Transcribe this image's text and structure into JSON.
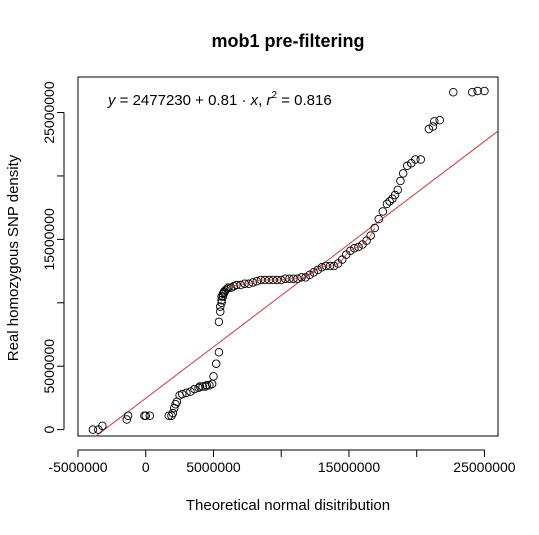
{
  "chart_data": {
    "type": "scatter",
    "title": "mob1 pre-filtering",
    "xlabel": "Theoretical normal disitribution",
    "ylabel": "Real homozygous SNP density",
    "xlim": [
      -5000000,
      26000000
    ],
    "ylim": [
      -500000,
      27800000
    ],
    "xticks": [
      -5000000,
      0,
      5000000,
      15000000,
      25000000
    ],
    "xtick_labels": [
      "-5000000",
      "0",
      "5000000",
      "15000000",
      "25000000"
    ],
    "xtick_minor": [
      10000000,
      20000000
    ],
    "yticks": [
      0,
      5000000,
      15000000,
      25000000
    ],
    "ytick_labels": [
      "0",
      "5000000",
      "15000000",
      "25000000"
    ],
    "ytick_minor": [
      10000000,
      20000000
    ],
    "annotation": {
      "y_sym": "y",
      "intercept_text": " = 2477230 + 0.81 · ",
      "x_sym": "x",
      "sep": ",  ",
      "r_sym": "r",
      "r_exp": "2",
      "r_value_text": " = 0.816"
    },
    "fit_line": {
      "intercept": 2477230,
      "slope": 0.81,
      "color": "#cd3b3b"
    },
    "point_color": "#000000",
    "fit_overlay_range": [
      6000000,
      17000000
    ],
    "x": [
      -3900000,
      -3500000,
      -3200000,
      -1400000,
      -1300000,
      -100000,
      0,
      300000,
      1700000,
      1900000,
      2000000,
      2100000,
      2200000,
      2300000,
      2500000,
      2700000,
      3000000,
      3300000,
      3600000,
      3900000,
      4000000,
      4200000,
      4400000,
      4500000,
      4700000,
      4900000,
      5000000,
      5200000,
      5400000,
      5400000,
      5500000,
      5500000,
      5600000,
      5600000,
      5600000,
      5700000,
      5700000,
      5800000,
      5800000,
      5900000,
      6000000,
      6100000,
      6300000,
      6500000,
      6700000,
      7000000,
      7300000,
      7600000,
      7900000,
      8200000,
      8500000,
      8800000,
      9100000,
      9400000,
      9700000,
      10000000,
      10300000,
      10600000,
      10900000,
      11200000,
      11500000,
      11800000,
      12100000,
      12400000,
      12700000,
      13000000,
      13300000,
      13600000,
      13900000,
      14200000,
      14500000,
      14800000,
      15100000,
      15400000,
      15700000,
      16000000,
      16300000,
      16600000,
      16900000,
      17200000,
      17500000,
      17800000,
      18000000,
      18200000,
      18400000,
      18600000,
      18800000,
      19000000,
      19300000,
      19600000,
      19900000,
      20300000,
      20900000,
      21200000,
      21300000,
      21700000,
      22700000,
      24100000,
      24500000,
      25000000
    ],
    "y": [
      0,
      0,
      300000,
      800000,
      1100000,
      1100000,
      1100000,
      1100000,
      1100000,
      1100000,
      1300000,
      1700000,
      2000000,
      2200000,
      2700000,
      2800000,
      2900000,
      3000000,
      3200000,
      3300000,
      3400000,
      3400000,
      3400000,
      3500000,
      3500000,
      3600000,
      4200000,
      5200000,
      6100000,
      8500000,
      9300000,
      9700000,
      10000000,
      10200000,
      10500000,
      10500000,
      10700000,
      10800000,
      10900000,
      11000000,
      11100000,
      11200000,
      11200000,
      11300000,
      11400000,
      11400000,
      11500000,
      11500000,
      11600000,
      11700000,
      11800000,
      11800000,
      11800000,
      11800000,
      11800000,
      11800000,
      11900000,
      11900000,
      11900000,
      11900000,
      12000000,
      12000000,
      12200000,
      12400000,
      12600000,
      12800000,
      12900000,
      12900000,
      12900000,
      13100000,
      13400000,
      13800000,
      14100000,
      14300000,
      14400000,
      14600000,
      14900000,
      15300000,
      15900000,
      16600000,
      17200000,
      17800000,
      18000000,
      18200000,
      18500000,
      18900000,
      19600000,
      20200000,
      20800000,
      21000000,
      21300000,
      21300000,
      23700000,
      23900000,
      24300000,
      24400000,
      26600000,
      26600000,
      26700000,
      26700000
    ]
  }
}
